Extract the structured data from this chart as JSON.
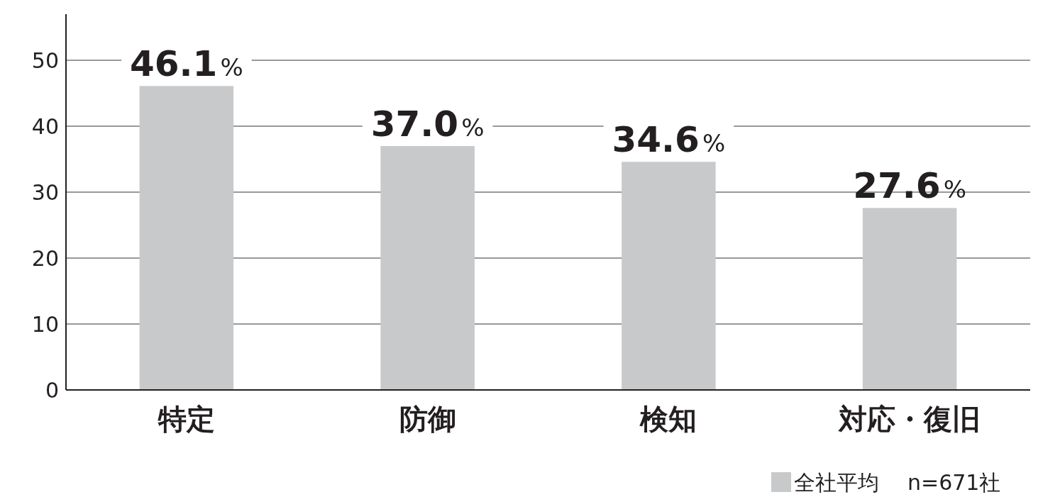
{
  "chart_data": {
    "type": "bar",
    "categories": [
      "特定",
      "防御",
      "検知",
      "対応・復旧"
    ],
    "series": [
      {
        "name": "全社平均",
        "color": "#c8c9ca",
        "values": [
          46.1,
          37.0,
          34.6,
          27.6
        ],
        "value_labels": [
          "46.1%",
          "37.0%",
          "34.6%",
          "27.6%"
        ]
      }
    ],
    "ylim": [
      0,
      57
    ],
    "yticks": [
      0,
      10,
      20,
      30,
      40,
      50
    ],
    "grid": "y",
    "legend": "bottom right",
    "annotations": [
      "n=671社"
    ]
  }
}
